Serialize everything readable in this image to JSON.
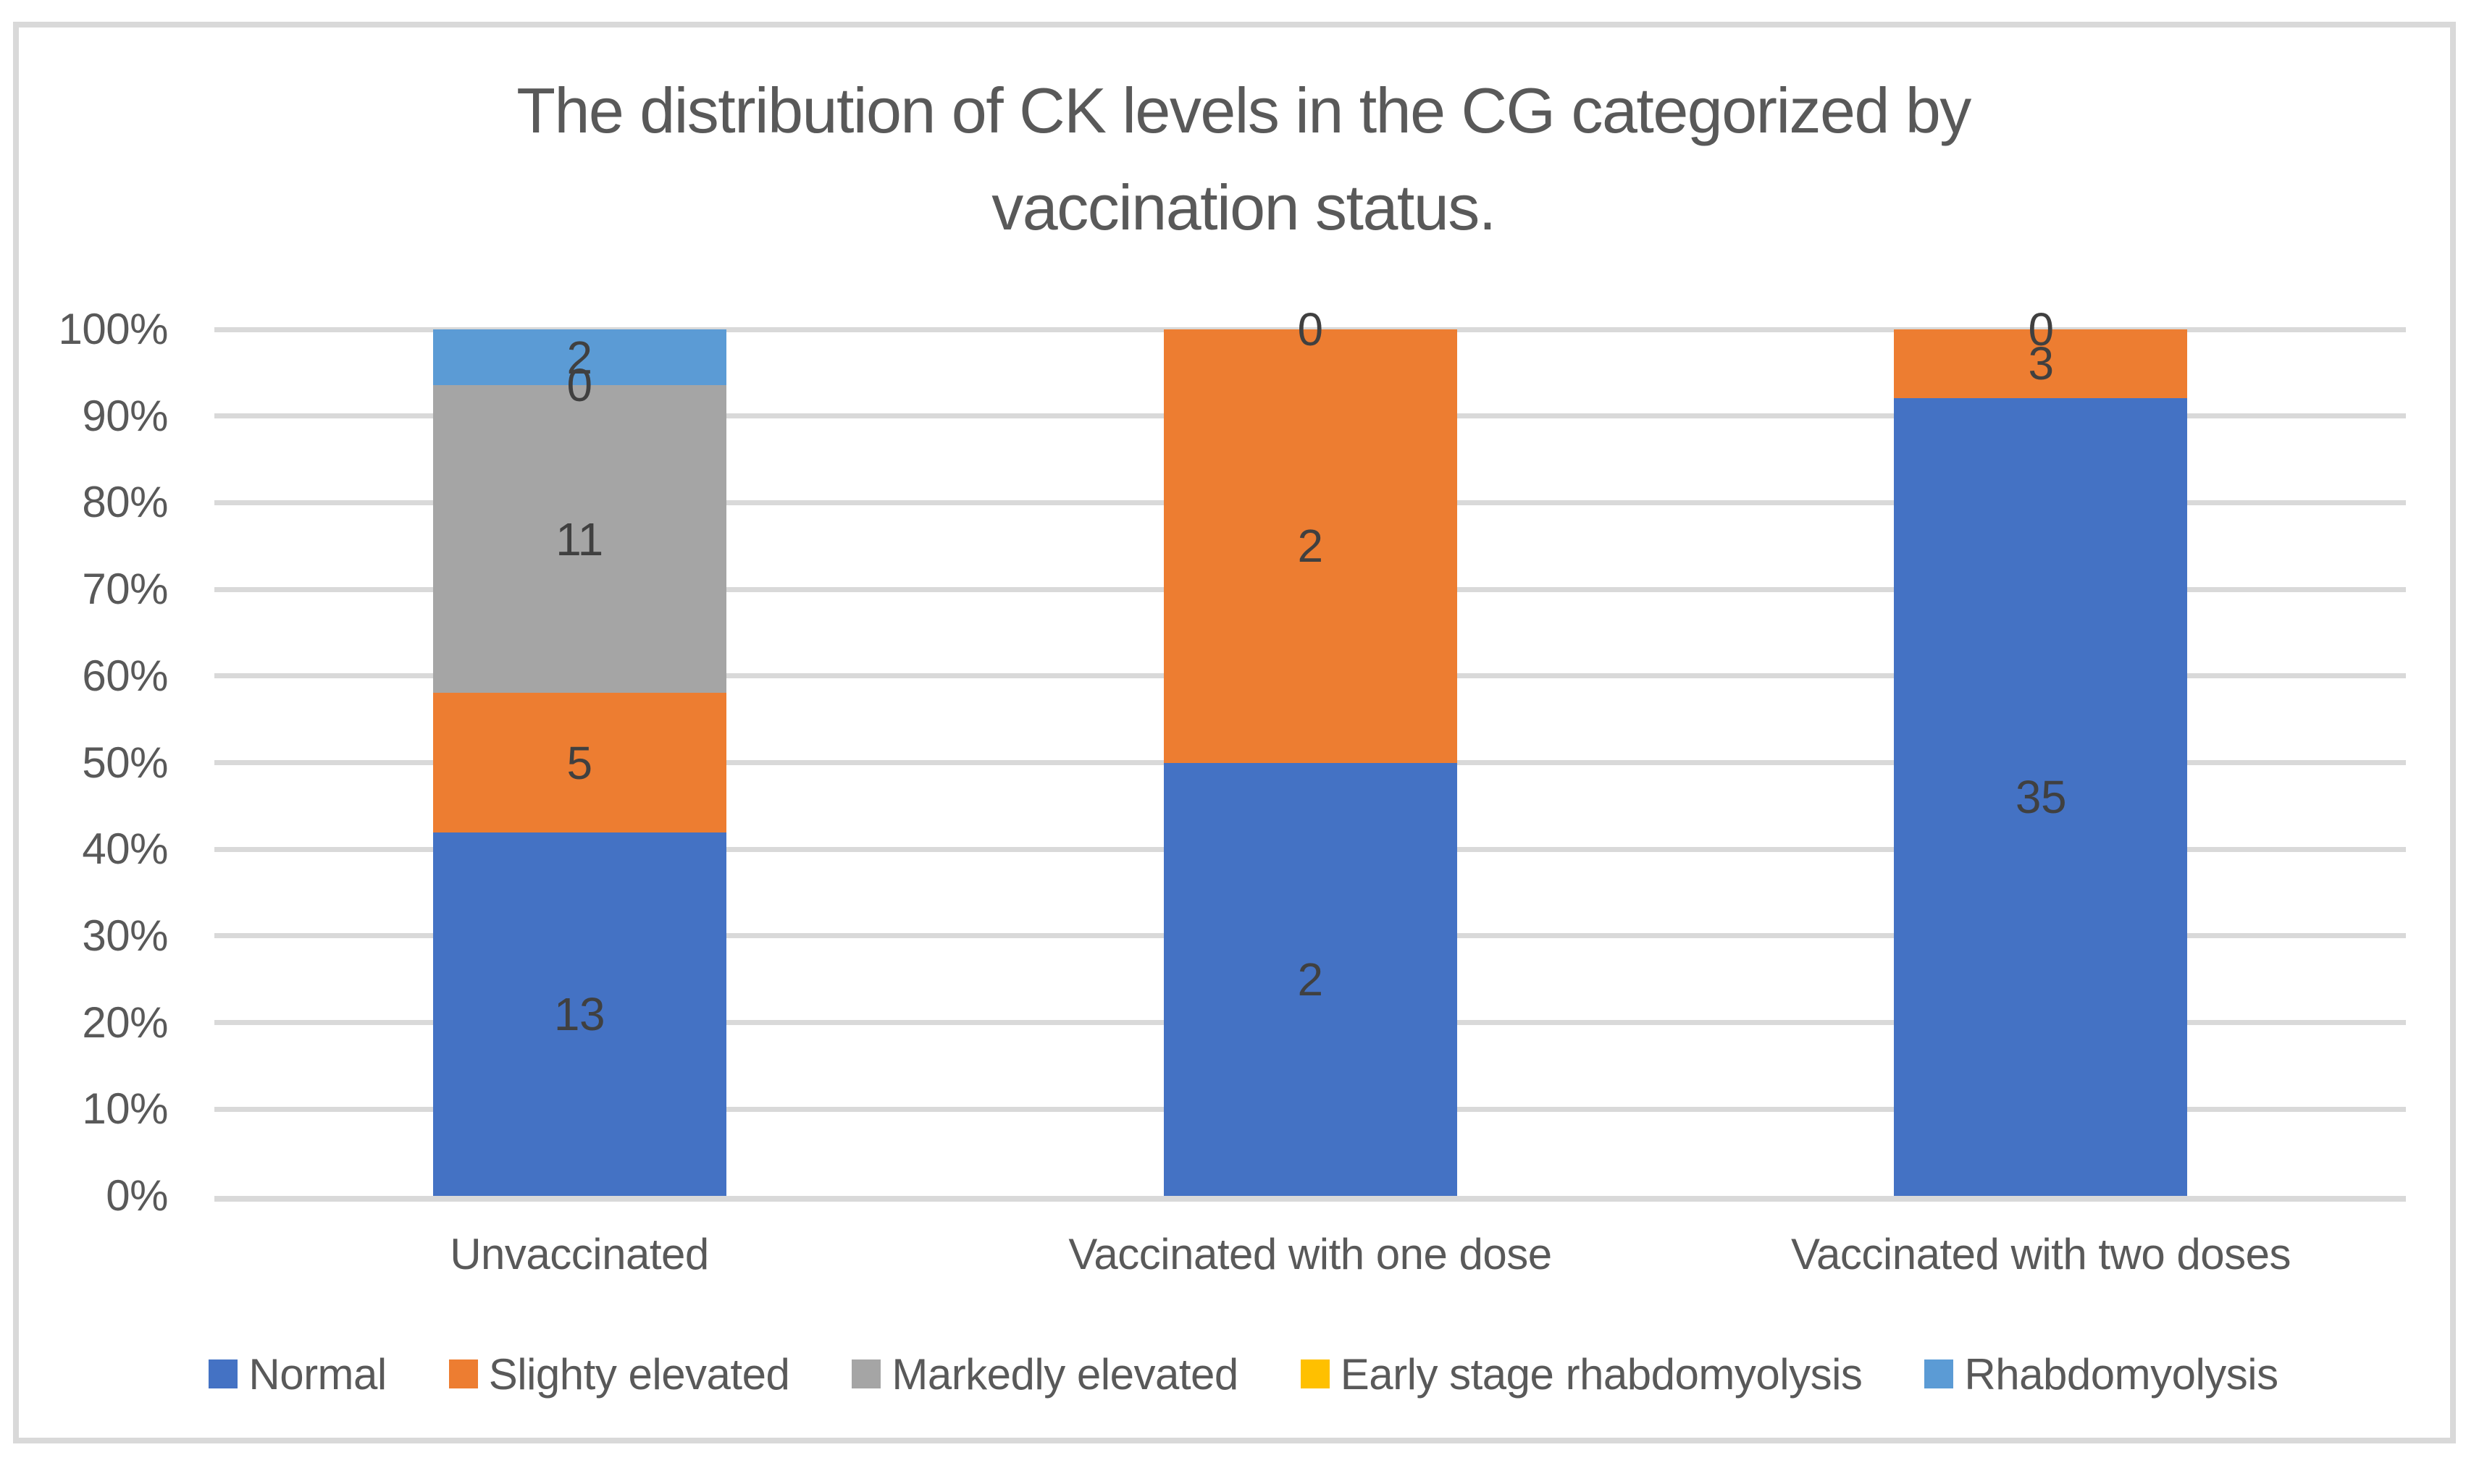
{
  "chart_data": {
    "type": "bar",
    "stacked": true,
    "percent_stacked": true,
    "title": "The distribution of CK levels in the CG categorized by vaccination status.",
    "title_lines": [
      "The distribution of CK levels in the CG categorized by",
      "vaccination status."
    ],
    "categories": [
      "Unvaccinated",
      "Vaccinated with one dose",
      "Vaccinated with two doses"
    ],
    "series": [
      {
        "name": "Normal",
        "color": "#4472C4",
        "values": [
          13,
          2,
          35
        ]
      },
      {
        "name": "Slighty elevated",
        "color": "#ED7D31",
        "values": [
          5,
          2,
          3
        ]
      },
      {
        "name": "Markedly elevated",
        "color": "#A5A5A5",
        "values": [
          11,
          0,
          0
        ]
      },
      {
        "name": "Early stage rhabdomyolysis",
        "color": "#FFC000",
        "values": [
          0,
          0,
          0
        ]
      },
      {
        "name": "Rhabdomyolysis",
        "color": "#5B9BD5",
        "values": [
          2,
          0,
          0
        ]
      }
    ],
    "y_axis": {
      "ticks": [
        "0%",
        "10%",
        "20%",
        "30%",
        "40%",
        "50%",
        "60%",
        "70%",
        "80%",
        "90%",
        "100%"
      ],
      "min": 0,
      "max": 1
    },
    "legend_position": "bottom",
    "gridlines": true
  },
  "colors": {
    "grid": "#D9D9D9",
    "border": "#D9D9D9",
    "axis_text": "#595959",
    "title_text": "#595959",
    "data_label_text": "#404040",
    "background": "#FFFFFF"
  }
}
